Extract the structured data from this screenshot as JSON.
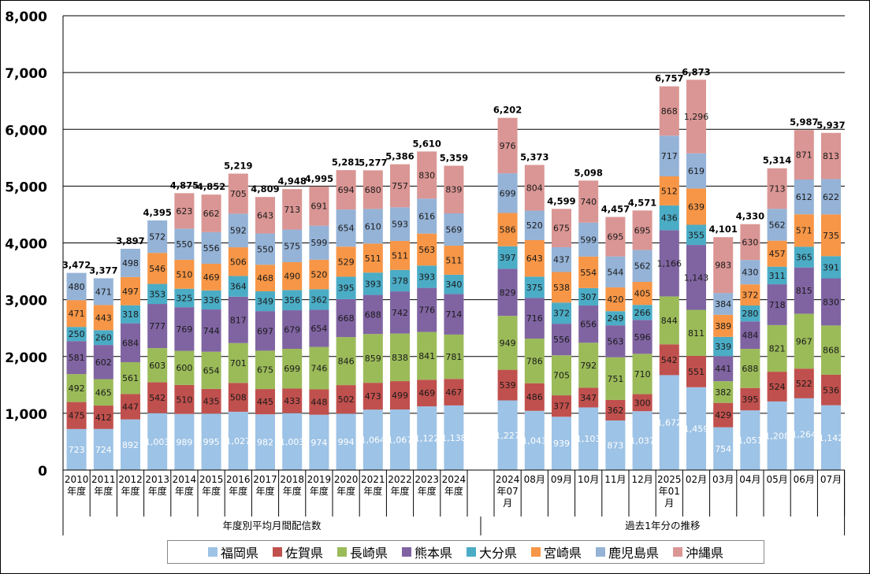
{
  "chart_data": {
    "type": "bar",
    "stacked": true,
    "ylim": [
      0,
      8000
    ],
    "yticks": [
      "0",
      "1,000",
      "2,000",
      "3,000",
      "4,000",
      "5,000",
      "6,000",
      "7,000",
      "8,000"
    ],
    "grid": true,
    "legend_position": "bottom",
    "group_labels": [
      "年度別平均月間配信数",
      "過去1年分の推移"
    ],
    "categories": [
      [
        "2010",
        "年度"
      ],
      [
        "2011",
        "年度"
      ],
      [
        "2012",
        "年度"
      ],
      [
        "2013",
        "年度"
      ],
      [
        "2014",
        "年度"
      ],
      [
        "2015",
        "年度"
      ],
      [
        "2016",
        "年度"
      ],
      [
        "2017",
        "年度"
      ],
      [
        "2018",
        "年度"
      ],
      [
        "2019",
        "年度"
      ],
      [
        "2020",
        "年度"
      ],
      [
        "2021",
        "年度"
      ],
      [
        "2022",
        "年度"
      ],
      [
        "2023",
        "年度"
      ],
      [
        "2024",
        "年度"
      ],
      [
        "2024",
        "年07",
        "月"
      ],
      [
        "08月"
      ],
      [
        "09月"
      ],
      [
        "10月"
      ],
      [
        "11月"
      ],
      [
        "12月"
      ],
      [
        "2025",
        "年01",
        "月"
      ],
      [
        "02月"
      ],
      [
        "03月"
      ],
      [
        "04月"
      ],
      [
        "05月"
      ],
      [
        "06月"
      ],
      [
        "07月"
      ]
    ],
    "series": [
      {
        "name": "福岡県",
        "color": "#9dc3e6",
        "values": [
          723,
          724,
          892,
          1003,
          989,
          995,
          1027,
          982,
          1003,
          974,
          994,
          1064,
          1067,
          1122,
          1138,
          1227,
          1043,
          939,
          1103,
          873,
          1037,
          1672,
          1459,
          754,
          1051,
          1208,
          1264,
          1142
        ]
      },
      {
        "name": "佐賀県",
        "color": "#c0504d",
        "values": [
          475,
          412,
          447,
          542,
          510,
          435,
          508,
          445,
          433,
          448,
          502,
          473,
          499,
          469,
          467,
          539,
          486,
          377,
          347,
          362,
          300,
          542,
          551,
          429,
          395,
          524,
          522,
          536
        ]
      },
      {
        "name": "長崎県",
        "color": "#9bbb59",
        "values": [
          492,
          465,
          561,
          603,
          600,
          654,
          701,
          675,
          699,
          746,
          846,
          859,
          838,
          841,
          781,
          949,
          786,
          705,
          792,
          751,
          710,
          844,
          811,
          382,
          688,
          821,
          967,
          868
        ]
      },
      {
        "name": "熊本県",
        "color": "#8064a2",
        "values": [
          581,
          602,
          684,
          777,
          769,
          744,
          817,
          697,
          679,
          654,
          668,
          688,
          742,
          776,
          714,
          829,
          716,
          556,
          656,
          563,
          596,
          1166,
          1143,
          441,
          484,
          718,
          815,
          830
        ]
      },
      {
        "name": "大分県",
        "color": "#4bacc6",
        "values": [
          250,
          260,
          318,
          353,
          325,
          336,
          364,
          349,
          356,
          362,
          395,
          393,
          378,
          393,
          340,
          397,
          375,
          372,
          307,
          249,
          266,
          436,
          355,
          339,
          280,
          311,
          365,
          391
        ]
      },
      {
        "name": "宮崎県",
        "color": "#f79646",
        "values": [
          471,
          443,
          497,
          546,
          510,
          469,
          506,
          468,
          490,
          520,
          529,
          511,
          511,
          563,
          511,
          586,
          643,
          538,
          554,
          420,
          405,
          512,
          639,
          389,
          372,
          457,
          571,
          735
        ]
      },
      {
        "name": "鹿児島県",
        "color": "#95b3d7",
        "values": [
          480,
          471,
          498,
          572,
          550,
          556,
          592,
          550,
          575,
          599,
          654,
          610,
          593,
          616,
          569,
          699,
          520,
          437,
          599,
          544,
          562,
          717,
          619,
          384,
          430,
          562,
          612,
          622
        ]
      },
      {
        "name": "沖縄県",
        "color": "#da9694",
        "values": [
          0,
          0,
          0,
          0,
          623,
          662,
          705,
          643,
          713,
          691,
          694,
          680,
          757,
          830,
          839,
          976,
          804,
          675,
          740,
          695,
          695,
          868,
          1296,
          983,
          630,
          713,
          871,
          813
        ]
      }
    ],
    "totals": [
      "3,472",
      "3,377",
      "3,897",
      "4,395",
      "4,875",
      "4,852",
      "5,219",
      "4,809",
      "4,948",
      "4,995",
      "5,281",
      "5,277",
      "5,386",
      "5,610",
      "5,359",
      "6,202",
      "5,373",
      "4,599",
      "5,098",
      "4,457",
      "4,571",
      "6,757",
      "6,873",
      "4,101",
      "4,330",
      "5,314",
      "5,987",
      "5,937"
    ]
  }
}
